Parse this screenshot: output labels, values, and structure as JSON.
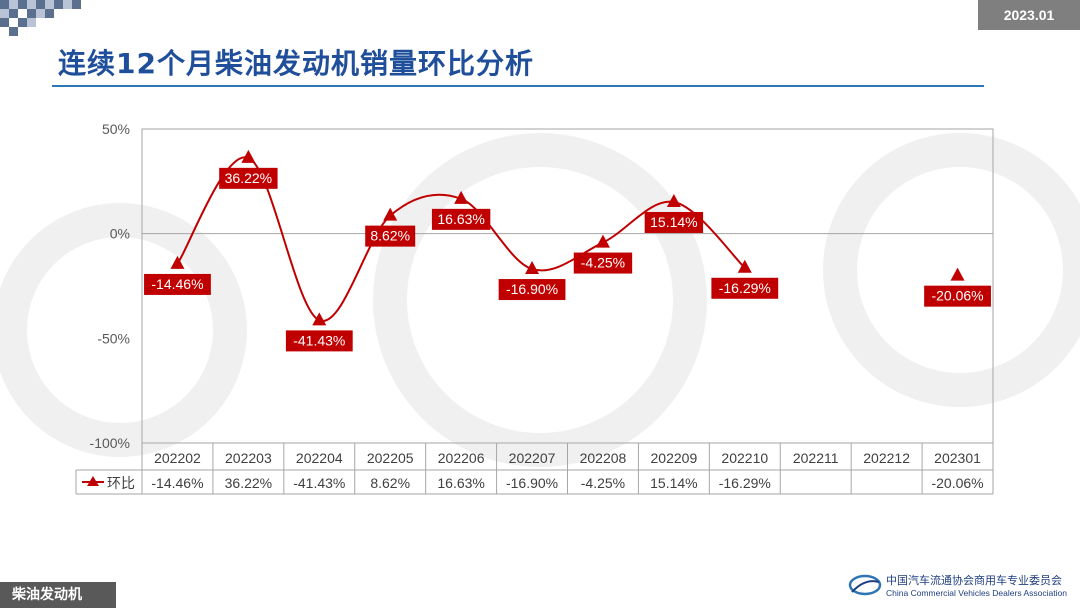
{
  "header": {
    "date": "2023.01",
    "title": "连续12个月柴油发动机销量环比分析"
  },
  "footer": {
    "section_label": "柴油发动机",
    "association_cn": "中国汽车流通协会商用车专业委员会",
    "association_en": "China Commercial Vehicles Dealers Association",
    "logo_text": "CVDA"
  },
  "colors": {
    "series": "#c00000",
    "title": "#1f4e9a",
    "rule": "#2e75b6"
  },
  "chart_data": {
    "type": "line",
    "title": "",
    "ylabel": "",
    "ylim": [
      -100,
      50
    ],
    "yticks": [
      50,
      0,
      -50,
      -100
    ],
    "ytick_labels": [
      "50%",
      "0%",
      "-50%",
      "-100%"
    ],
    "categories": [
      "202202",
      "202203",
      "202204",
      "202205",
      "202206",
      "202207",
      "202208",
      "202209",
      "202210",
      "202211",
      "202212",
      "202301"
    ],
    "series": [
      {
        "name": "环比",
        "values": [
          -14.46,
          36.22,
          -41.43,
          8.62,
          16.63,
          -16.9,
          -4.25,
          15.14,
          -16.29,
          null,
          null,
          -20.06
        ],
        "labels": [
          "-14.46%",
          "36.22%",
          "-41.43%",
          "8.62%",
          "16.63%",
          "-16.90%",
          "-4.25%",
          "15.14%",
          "-16.29%",
          "",
          "",
          "-20.06%"
        ]
      }
    ],
    "legend_position": "table-left"
  }
}
